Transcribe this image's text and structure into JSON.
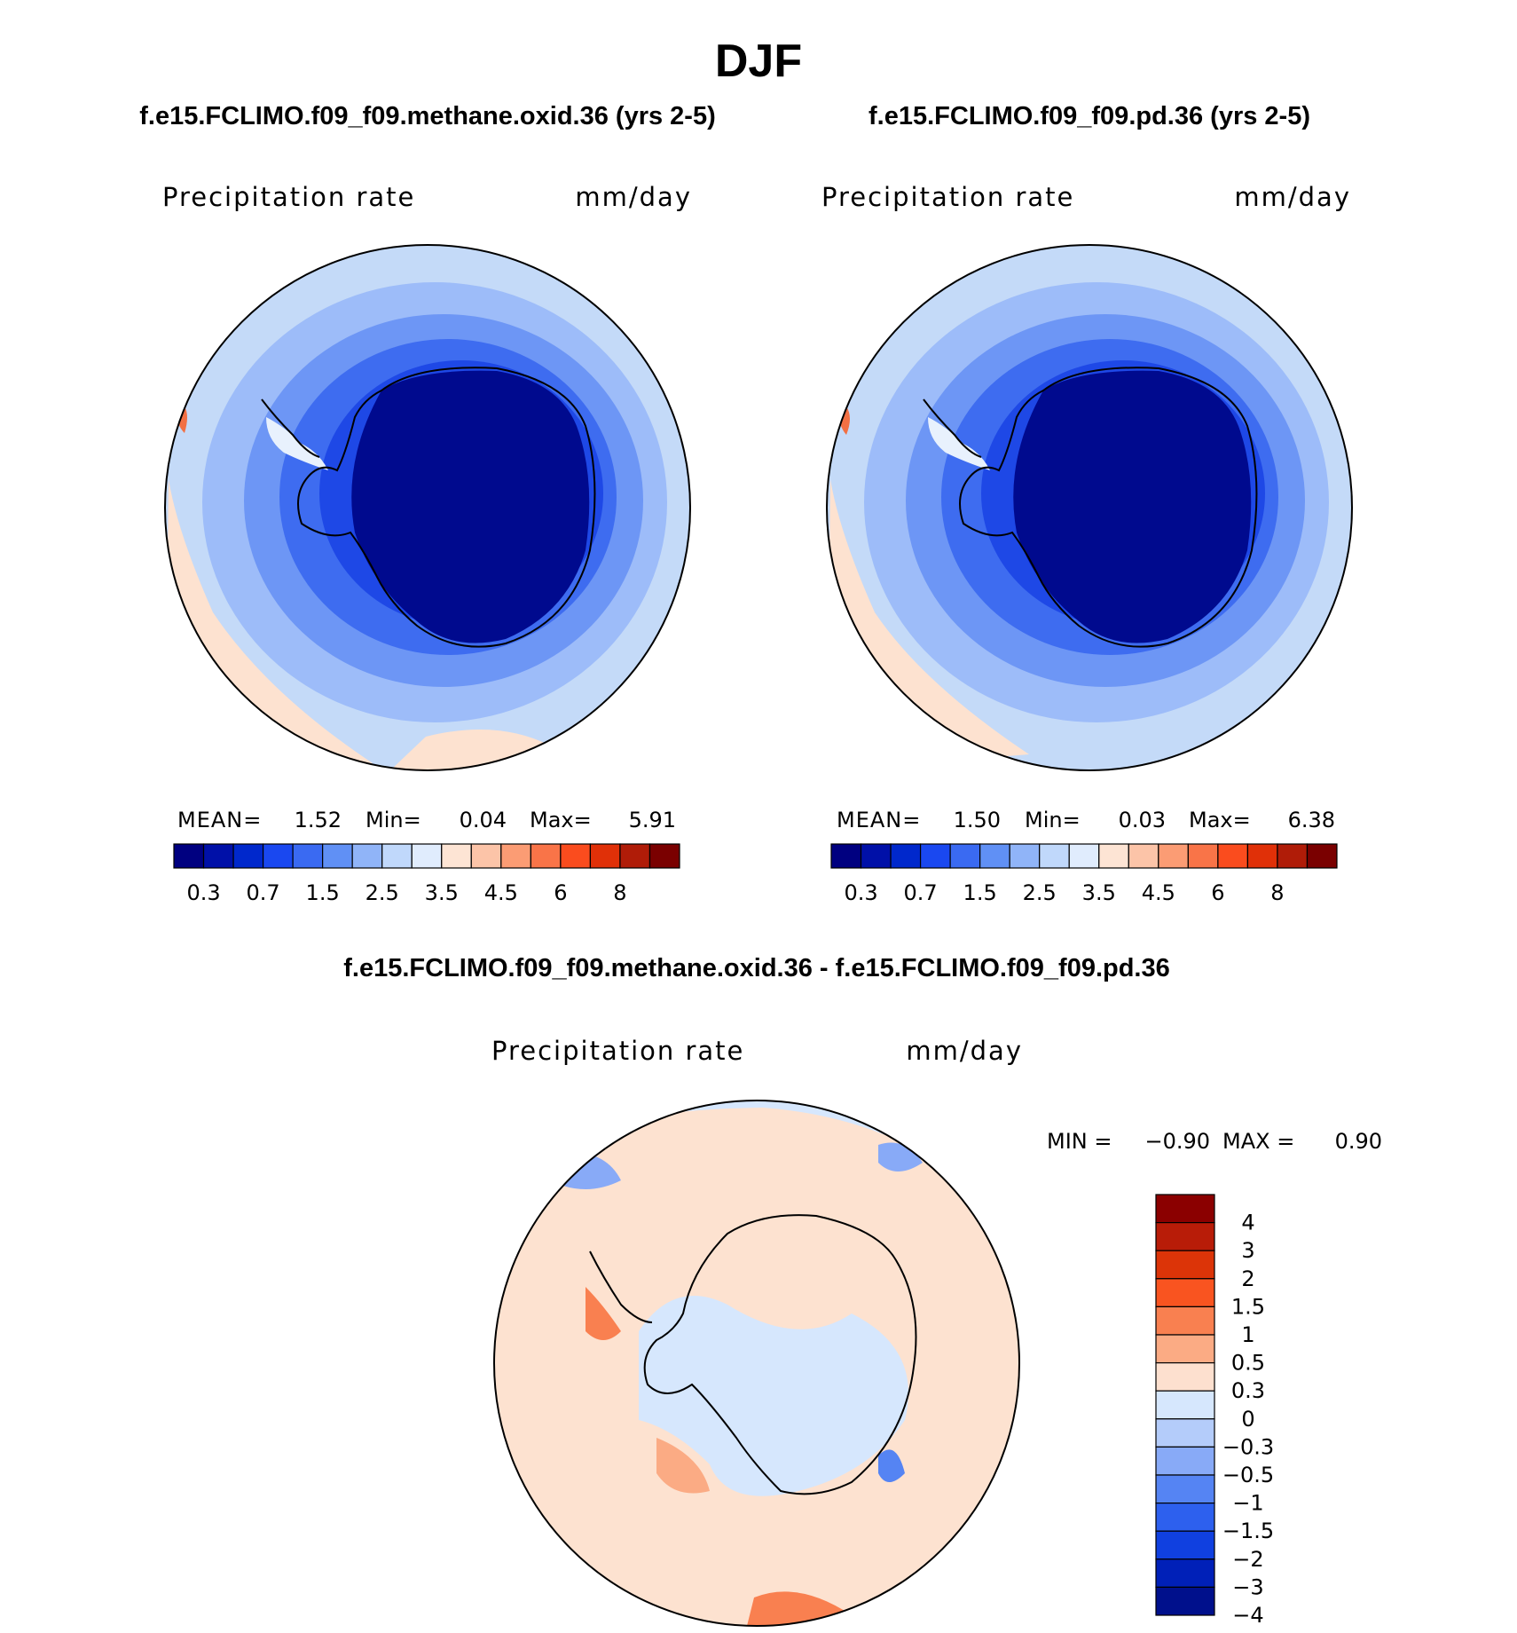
{
  "page": {
    "season_title": "DJF"
  },
  "chart_data": [
    {
      "type": "heatmap",
      "projection": "south-polar-stereographic",
      "title": "f.e15.FCLIMO.f09_f09.methane.oxid.36 (yrs 2-5)",
      "variable": "Precipitation rate",
      "units": "mm/day",
      "stats": {
        "mean_label": "MEAN=",
        "mean": "1.52",
        "min_label": "Min=",
        "min": "0.04",
        "max_label": "Max=",
        "max": "5.91"
      },
      "colorbar": {
        "colors": [
          "#000080",
          "#0010a8",
          "#0028cc",
          "#1a48f0",
          "#3a6af2",
          "#6090f5",
          "#90b4f8",
          "#c0d8fb",
          "#e0ecfd",
          "#fde4d4",
          "#fcc4a8",
          "#fb9c74",
          "#f97448",
          "#fa4c1e",
          "#e03008",
          "#b01c08",
          "#7a0000"
        ],
        "tick_labels": [
          "0.3",
          "0.7",
          "1.5",
          "2.5",
          "3.5",
          "4.5",
          "6",
          "8"
        ]
      },
      "description_fields": {
        "continent": "very low (<0.3)",
        "coastal_ring": "0.3-1.5",
        "mid_latitudes": "1.5-3",
        "outer_edge": "2.5-4"
      }
    },
    {
      "type": "heatmap",
      "projection": "south-polar-stereographic",
      "title": "f.e15.FCLIMO.f09_f09.pd.36 (yrs 2-5)",
      "variable": "Precipitation rate",
      "units": "mm/day",
      "stats": {
        "mean_label": "MEAN=",
        "mean": "1.50",
        "min_label": "Min=",
        "min": "0.03",
        "max_label": "Max=",
        "max": "6.38"
      },
      "colorbar": {
        "colors": [
          "#000080",
          "#0010a8",
          "#0028cc",
          "#1a48f0",
          "#3a6af2",
          "#6090f5",
          "#90b4f8",
          "#c0d8fb",
          "#e0ecfd",
          "#fde4d4",
          "#fcc4a8",
          "#fb9c74",
          "#f97448",
          "#fa4c1e",
          "#e03008",
          "#b01c08",
          "#7a0000"
        ],
        "tick_labels": [
          "0.3",
          "0.7",
          "1.5",
          "2.5",
          "3.5",
          "4.5",
          "6",
          "8"
        ]
      }
    },
    {
      "type": "heatmap",
      "projection": "south-polar-stereographic",
      "title": "f.e15.FCLIMO.f09_f09.methane.oxid.36 - f.e15.FCLIMO.f09_f09.pd.36",
      "variable": "Precipitation rate",
      "units": "mm/day",
      "stats": {
        "min_label": "MIN =",
        "min": "−0.90",
        "max_label": "MAX =",
        "max": "0.90"
      },
      "colorbar": {
        "orientation": "vertical",
        "colors_top_to_bottom": [
          "#8b0000",
          "#b81c08",
          "#dc3408",
          "#f95420",
          "#f98050",
          "#fbab84",
          "#fde0cf",
          "#d6e7fd",
          "#b4ccfa",
          "#88aaf7",
          "#5584f3",
          "#2d60ee",
          "#1040e0",
          "#0020b8",
          "#00108c"
        ],
        "tick_labels_top_to_bottom": [
          "4",
          "3",
          "2",
          "1.5",
          "1",
          "0.5",
          "0.3",
          "0",
          "−0.3",
          "−0.5",
          "−1",
          "−1.5",
          "−2",
          "−3",
          "−4"
        ]
      }
    }
  ]
}
